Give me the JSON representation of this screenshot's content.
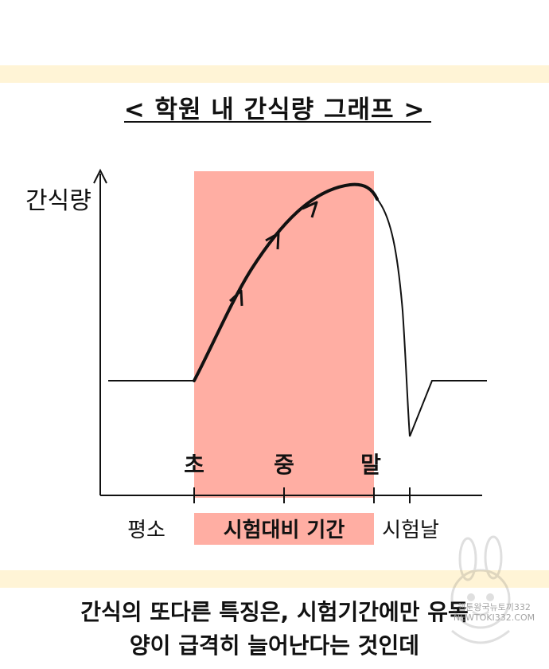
{
  "title": "< 학원 내 간식량 그래프 >",
  "diagram": {
    "y_axis_label": "간식량",
    "markers": [
      "초",
      "중",
      "말"
    ],
    "x_labels": {
      "normal": "평소",
      "exam_prep": "시험대비 기간",
      "exam_day": "시험날"
    },
    "colors": {
      "highlight": "#ffaea3",
      "band": "#fff4d6",
      "line": "#111111"
    }
  },
  "caption": {
    "line1": "간식의 또다른 특징은,  시험기간에만 유독",
    "line2": "양이 급격히 늘어난다는 것인데"
  },
  "watermark": {
    "line1": "웹툰왕국뉴토끼332",
    "line2": "NEWTOKI332.COM"
  }
}
